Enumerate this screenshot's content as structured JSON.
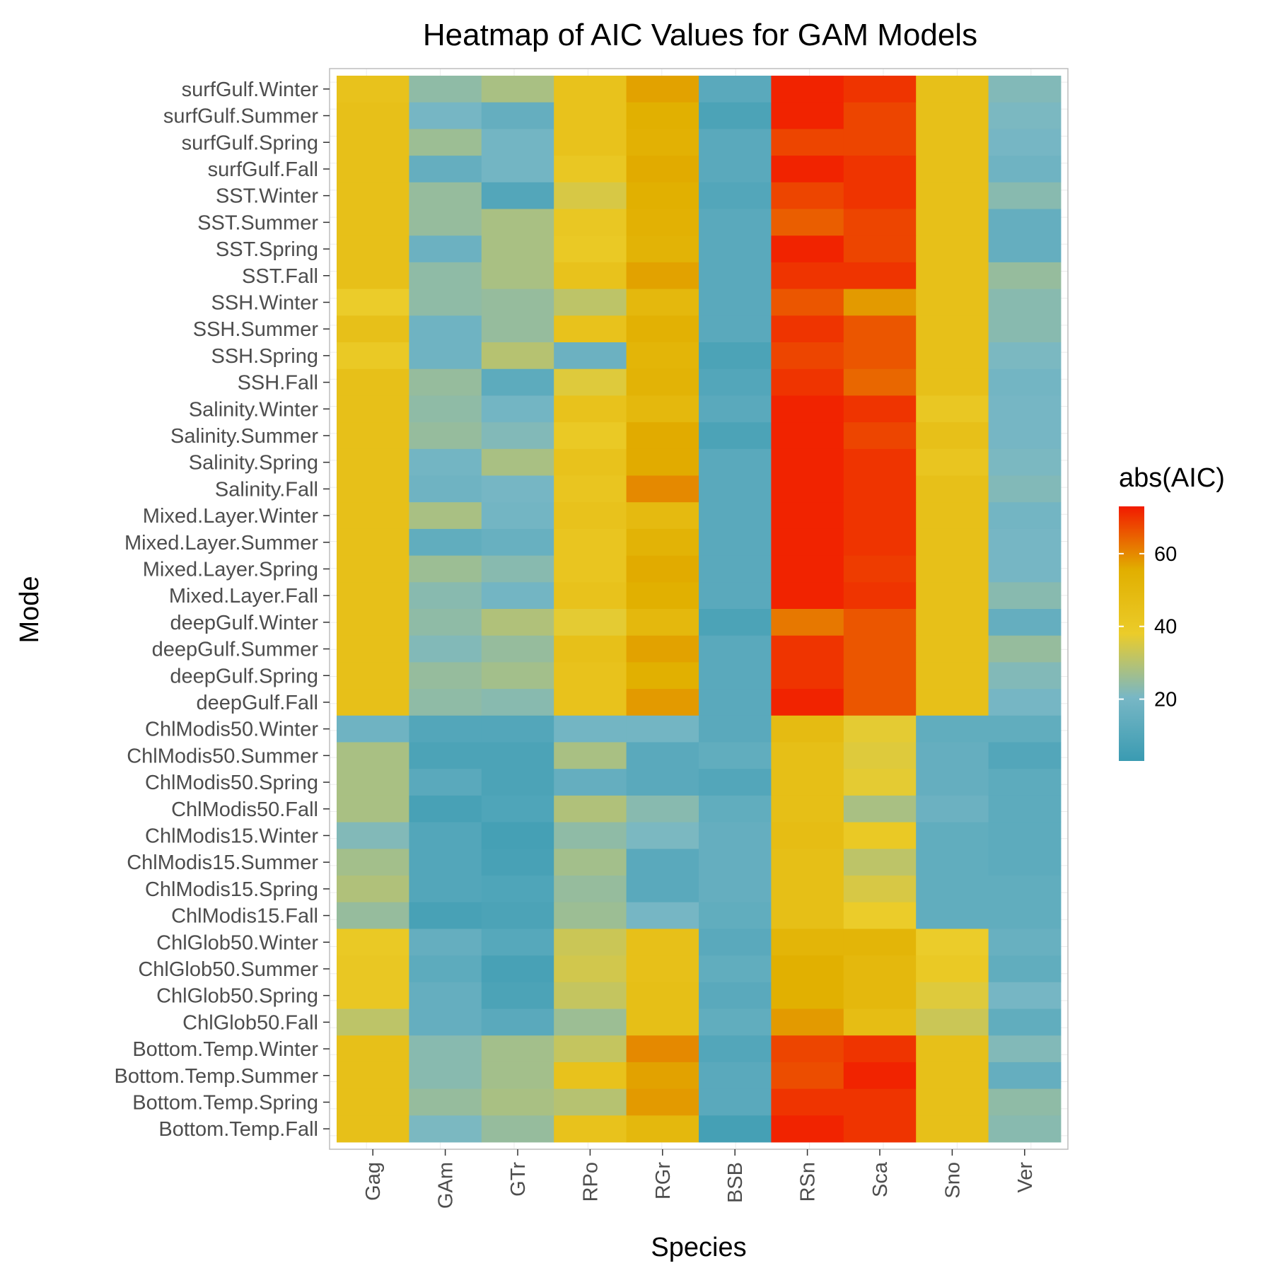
{
  "chart_data": {
    "type": "heatmap",
    "title": "Heatmap of AIC Values for GAM Models",
    "xlabel": "Species",
    "ylabel": "Mode",
    "x_categories": [
      "Gag",
      "GAm",
      "GTr",
      "RPo",
      "RGr",
      "BSB",
      "RSn",
      "Sca",
      "Sno",
      "Ver"
    ],
    "y_categories": [
      "surfGulf.Winter",
      "surfGulf.Summer",
      "surfGulf.Spring",
      "surfGulf.Fall",
      "SST.Winter",
      "SST.Summer",
      "SST.Spring",
      "SST.Fall",
      "SSH.Winter",
      "SSH.Summer",
      "SSH.Spring",
      "SSH.Fall",
      "Salinity.Winter",
      "Salinity.Summer",
      "Salinity.Spring",
      "Salinity.Fall",
      "Mixed.Layer.Winter",
      "Mixed.Layer.Summer",
      "Mixed.Layer.Spring",
      "Mixed.Layer.Fall",
      "deepGulf.Winter",
      "deepGulf.Summer",
      "deepGulf.Spring",
      "deepGulf.Fall",
      "ChlModis50.Winter",
      "ChlModis50.Summer",
      "ChlModis50.Spring",
      "ChlModis50.Fall",
      "ChlModis15.Winter",
      "ChlModis15.Summer",
      "ChlModis15.Spring",
      "ChlModis15.Fall",
      "ChlGlob50.Winter",
      "ChlGlob50.Summer",
      "ChlGlob50.Spring",
      "ChlGlob50.Fall",
      "Bottom.Temp.Winter",
      "Bottom.Temp.Summer",
      "Bottom.Temp.Spring",
      "Bottom.Temp.Fall"
    ],
    "values": [
      [
        44,
        24,
        28,
        44,
        57,
        12,
        72,
        70,
        45,
        22
      ],
      [
        45,
        20,
        15,
        44,
        55,
        8,
        72,
        68,
        45,
        21
      ],
      [
        45,
        26,
        19,
        44,
        54,
        12,
        68,
        68,
        45,
        20
      ],
      [
        45,
        15,
        19,
        41,
        56,
        12,
        72,
        70,
        45,
        18
      ],
      [
        45,
        25,
        10,
        35,
        55,
        10,
        68,
        70,
        45,
        23
      ],
      [
        45,
        25,
        28,
        41,
        54,
        12,
        65,
        68,
        45,
        15
      ],
      [
        45,
        17,
        28,
        40,
        53,
        12,
        72,
        68,
        45,
        15
      ],
      [
        45,
        24,
        28,
        44,
        57,
        12,
        70,
        70,
        45,
        25
      ],
      [
        38,
        24,
        25,
        31,
        50,
        12,
        66,
        58,
        45,
        23
      ],
      [
        45,
        18,
        25,
        44,
        54,
        12,
        70,
        66,
        45,
        23
      ],
      [
        40,
        18,
        30,
        17,
        52,
        8,
        68,
        66,
        45,
        21
      ],
      [
        45,
        25,
        13,
        36,
        53,
        10,
        70,
        64,
        45,
        19
      ],
      [
        45,
        24,
        19,
        44,
        50,
        12,
        72,
        70,
        41,
        20
      ],
      [
        45,
        25,
        22,
        40,
        56,
        8,
        72,
        68,
        45,
        20
      ],
      [
        45,
        19,
        28,
        44,
        56,
        12,
        72,
        70,
        42,
        21
      ],
      [
        45,
        18,
        20,
        42,
        60,
        12,
        72,
        70,
        45,
        22
      ],
      [
        45,
        28,
        19,
        44,
        49,
        12,
        72,
        70,
        45,
        19
      ],
      [
        45,
        14,
        16,
        42,
        53,
        12,
        72,
        70,
        45,
        20
      ],
      [
        45,
        26,
        23,
        42,
        56,
        12,
        72,
        69,
        45,
        20
      ],
      [
        45,
        23,
        19,
        44,
        55,
        12,
        72,
        70,
        45,
        23
      ],
      [
        45,
        24,
        29,
        37,
        50,
        8,
        62,
        66,
        45,
        15
      ],
      [
        45,
        22,
        25,
        45,
        57,
        12,
        70,
        66,
        45,
        25
      ],
      [
        45,
        25,
        27,
        44,
        55,
        12,
        70,
        66,
        45,
        22
      ],
      [
        45,
        24,
        23,
        44,
        58,
        12,
        72,
        66,
        45,
        20
      ],
      [
        18,
        10,
        10,
        19,
        19,
        12,
        48,
        37,
        14,
        14
      ],
      [
        28,
        8,
        8,
        28,
        12,
        14,
        46,
        36,
        15,
        10
      ],
      [
        28,
        12,
        8,
        15,
        12,
        10,
        46,
        37,
        15,
        13
      ],
      [
        28,
        7,
        9,
        29,
        23,
        14,
        46,
        28,
        17,
        13
      ],
      [
        22,
        10,
        6,
        24,
        21,
        15,
        47,
        40,
        14,
        13
      ],
      [
        27,
        10,
        7,
        27,
        12,
        15,
        46,
        31,
        14,
        13
      ],
      [
        29,
        10,
        9,
        25,
        12,
        15,
        46,
        35,
        14,
        14
      ],
      [
        25,
        7,
        8,
        26,
        20,
        14,
        46,
        38,
        14,
        14
      ],
      [
        40,
        15,
        11,
        33,
        45,
        12,
        52,
        52,
        38,
        16
      ],
      [
        41,
        13,
        7,
        34,
        45,
        14,
        55,
        50,
        40,
        14
      ],
      [
        41,
        15,
        8,
        32,
        46,
        12,
        55,
        50,
        36,
        20
      ],
      [
        31,
        15,
        12,
        26,
        46,
        14,
        58,
        47,
        33,
        14
      ],
      [
        45,
        23,
        27,
        32,
        60,
        10,
        68,
        70,
        45,
        22
      ],
      [
        45,
        23,
        27,
        44,
        57,
        12,
        67,
        72,
        45,
        15
      ],
      [
        45,
        25,
        28,
        30,
        58,
        12,
        70,
        70,
        45,
        24
      ],
      [
        45,
        21,
        25,
        44,
        50,
        6,
        72,
        70,
        45,
        23
      ]
    ],
    "colorbar": {
      "title": "abs(AIC)",
      "ticks": [
        20,
        40,
        60
      ],
      "range": [
        3,
        73
      ],
      "colors": [
        "#3a9bb2",
        "#78b7c5",
        "#ebcc2a",
        "#e1af00",
        "#f21a00"
      ]
    },
    "grid": true,
    "legend_position": "right"
  }
}
